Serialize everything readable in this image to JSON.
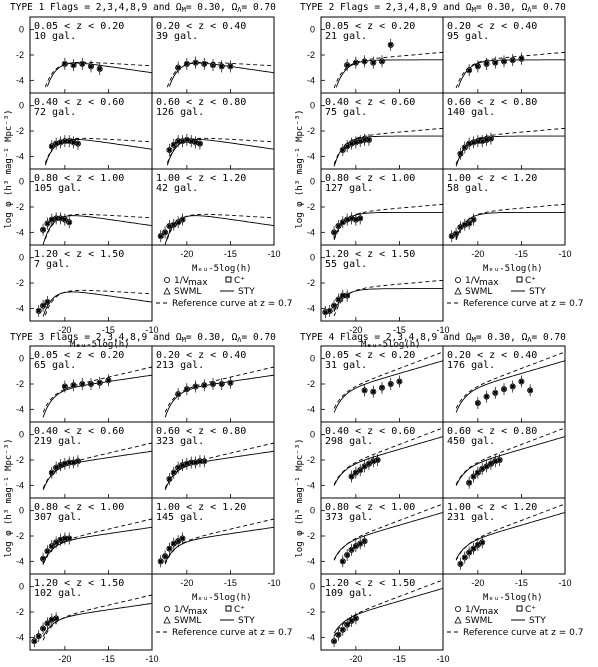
{
  "figure": {
    "legend": {
      "vmax": "1/V",
      "vmax_sub": "max",
      "cplus": "C⁺",
      "swml": "SWML",
      "sty": "STY",
      "ref": "Reference curve at z = 0.7"
    },
    "xlabels": [
      "M",
      "-5log(h)"
    ],
    "ylabel_units": "Mpc",
    "ylabel": "log φ"
  },
  "chart_data": [
    {
      "type": "line",
      "title": "TYPE 1   Flags = 2,3,4,8,9 and  ΩM= 0.30, ΩΛ= 0.70",
      "title_plain": "TYPE 1",
      "flags": "Flags = 2,3,4,8,9 and",
      "omega_m": "0.30",
      "omega_l": "0.70",
      "xlabel": "M  -5log(h)",
      "ylabel": "log φ (h³ mag⁻¹ Mpc⁻³)",
      "xlim": [
        -24,
        -10
      ],
      "ylim": [
        -5,
        1
      ],
      "xticks": [
        -20,
        -15,
        -10
      ],
      "yticks": [
        0,
        -2,
        -4
      ],
      "panels": [
        {
          "range": "0.05 < z < 0.20",
          "n": "10 gal.",
          "pts": [
            [
              -20,
              -2.7
            ],
            [
              -19,
              -2.8
            ],
            [
              -18,
              -2.7
            ],
            [
              -17,
              -2.9
            ],
            [
              -16,
              -3.1
            ]
          ]
        },
        {
          "range": "0.20 < z < 0.40",
          "n": "39 gal.",
          "pts": [
            [
              -21,
              -3.0
            ],
            [
              -20,
              -2.7
            ],
            [
              -19,
              -2.6
            ],
            [
              -18,
              -2.7
            ],
            [
              -17,
              -2.8
            ],
            [
              -16,
              -2.9
            ],
            [
              -15,
              -2.9
            ]
          ]
        },
        {
          "range": "0.40 < z < 0.60",
          "n": "72 gal.",
          "pts": [
            [
              -21.5,
              -3.2
            ],
            [
              -21,
              -3.0
            ],
            [
              -20.5,
              -2.9
            ],
            [
              -20,
              -2.8
            ],
            [
              -19.5,
              -2.8
            ],
            [
              -19,
              -2.9
            ],
            [
              -18.5,
              -3.0
            ]
          ]
        },
        {
          "range": "0.60 < z < 0.80",
          "n": "126 gal.",
          "pts": [
            [
              -22,
              -3.5
            ],
            [
              -21.5,
              -3.1
            ],
            [
              -21,
              -2.8
            ],
            [
              -20.5,
              -2.8
            ],
            [
              -20,
              -2.7
            ],
            [
              -19.5,
              -2.8
            ],
            [
              -19,
              -2.9
            ],
            [
              -18.5,
              -3.0
            ]
          ]
        },
        {
          "range": "0.80 < z < 1.00",
          "n": "105 gal.",
          "pts": [
            [
              -22.5,
              -3.8
            ],
            [
              -22,
              -3.3
            ],
            [
              -21.5,
              -3.0
            ],
            [
              -21,
              -2.9
            ],
            [
              -20.5,
              -2.9
            ],
            [
              -20,
              -3.0
            ],
            [
              -19.5,
              -3.2
            ]
          ]
        },
        {
          "range": "1.00 < z < 1.20",
          "n": "42 gal.",
          "pts": [
            [
              -23,
              -4.3
            ],
            [
              -22.5,
              -4.0
            ],
            [
              -22,
              -3.5
            ],
            [
              -21.5,
              -3.4
            ],
            [
              -21,
              -3.2
            ],
            [
              -20.5,
              -3.0
            ]
          ]
        },
        {
          "range": "1.20 < z < 1.50",
          "n": "7 gal.",
          "pts": [
            [
              -23,
              -4.2
            ],
            [
              -22.5,
              -3.8
            ],
            [
              -22,
              -3.5
            ]
          ]
        }
      ]
    },
    {
      "type": "line",
      "title": "TYPE 2",
      "title_plain": "TYPE 2",
      "flags": "Flags = 2,3,4,8,9 and",
      "omega_m": "0.30",
      "omega_l": "0.70",
      "xlim": [
        -24,
        -10
      ],
      "ylim": [
        -5,
        1
      ],
      "xticks": [
        -20,
        -15,
        -10
      ],
      "yticks": [
        0,
        -2,
        -4
      ],
      "panels": [
        {
          "range": "0.05 < z < 0.20",
          "n": "21 gal.",
          "pts": [
            [
              -21,
              -2.8
            ],
            [
              -20,
              -2.6
            ],
            [
              -19,
              -2.5
            ],
            [
              -18,
              -2.6
            ],
            [
              -17,
              -2.5
            ],
            [
              -16,
              -1.2
            ]
          ]
        },
        {
          "range": "0.20 < z < 0.40",
          "n": "95 gal.",
          "pts": [
            [
              -21,
              -3.2
            ],
            [
              -20,
              -2.9
            ],
            [
              -19,
              -2.7
            ],
            [
              -18,
              -2.6
            ],
            [
              -17,
              -2.5
            ],
            [
              -16,
              -2.4
            ],
            [
              -15,
              -2.3
            ]
          ]
        },
        {
          "range": "0.40 < z < 0.60",
          "n": "75 gal.",
          "pts": [
            [
              -21.5,
              -3.5
            ],
            [
              -21,
              -3.2
            ],
            [
              -20.5,
              -3.0
            ],
            [
              -20,
              -2.9
            ],
            [
              -19.5,
              -2.8
            ],
            [
              -19,
              -2.7
            ],
            [
              -18.5,
              -2.7
            ]
          ]
        },
        {
          "range": "0.60 < z < 0.80",
          "n": "140 gal.",
          "pts": [
            [
              -22,
              -3.8
            ],
            [
              -21.5,
              -3.3
            ],
            [
              -21,
              -3.0
            ],
            [
              -20.5,
              -2.9
            ],
            [
              -20,
              -2.8
            ],
            [
              -19.5,
              -2.8
            ],
            [
              -19,
              -2.7
            ],
            [
              -18.5,
              -2.6
            ]
          ]
        },
        {
          "range": "0.80 < z < 1.00",
          "n": "127 gal.",
          "pts": [
            [
              -22.5,
              -4.0
            ],
            [
              -22,
              -3.5
            ],
            [
              -21.5,
              -3.2
            ],
            [
              -21,
              -3.0
            ],
            [
              -20.5,
              -2.9
            ],
            [
              -20,
              -3.0
            ],
            [
              -19.5,
              -2.9
            ]
          ]
        },
        {
          "range": "1.00 < z < 1.20",
          "n": "58 gal.",
          "pts": [
            [
              -23,
              -4.3
            ],
            [
              -22.5,
              -4.1
            ],
            [
              -22,
              -3.6
            ],
            [
              -21.5,
              -3.4
            ],
            [
              -21,
              -3.3
            ],
            [
              -20.5,
              -3.0
            ]
          ]
        },
        {
          "range": "1.20 < z < 1.50",
          "n": "55 gal.",
          "pts": [
            [
              -23.5,
              -4.3
            ],
            [
              -23,
              -4.2
            ],
            [
              -22.5,
              -3.8
            ],
            [
              -22,
              -3.3
            ],
            [
              -21.5,
              -3.0
            ],
            [
              -21,
              -3.0
            ]
          ]
        }
      ]
    },
    {
      "type": "line",
      "title": "TYPE 3",
      "title_plain": "TYPE 3",
      "flags": "Flags = 2,3,4,8,9 and",
      "omega_m": "0.30",
      "omega_l": "0.70",
      "xlim": [
        -24,
        -10
      ],
      "ylim": [
        -5,
        1
      ],
      "xticks": [
        -20,
        -15,
        -10
      ],
      "yticks": [
        0,
        -2,
        -4
      ],
      "panels": [
        {
          "range": "0.05 < z < 0.20",
          "n": "65 gal.",
          "pts": [
            [
              -20,
              -2.2
            ],
            [
              -19,
              -2.1
            ],
            [
              -18,
              -2.0
            ],
            [
              -17,
              -2.0
            ],
            [
              -16,
              -1.9
            ],
            [
              -15,
              -1.7
            ]
          ]
        },
        {
          "range": "0.20 < z < 0.40",
          "n": "213 gal.",
          "pts": [
            [
              -21,
              -2.8
            ],
            [
              -20,
              -2.4
            ],
            [
              -19,
              -2.2
            ],
            [
              -18,
              -2.1
            ],
            [
              -17,
              -2.0
            ],
            [
              -16,
              -2.0
            ],
            [
              -15,
              -1.9
            ]
          ]
        },
        {
          "range": "0.40 < z < 0.60",
          "n": "219 gal.",
          "pts": [
            [
              -21.5,
              -3.0
            ],
            [
              -21,
              -2.6
            ],
            [
              -20.5,
              -2.4
            ],
            [
              -20,
              -2.3
            ],
            [
              -19.5,
              -2.2
            ],
            [
              -19,
              -2.2
            ],
            [
              -18.5,
              -2.1
            ]
          ]
        },
        {
          "range": "0.60 < z < 0.80",
          "n": "323 gal.",
          "pts": [
            [
              -22,
              -3.5
            ],
            [
              -21.5,
              -3.0
            ],
            [
              -21,
              -2.6
            ],
            [
              -20.5,
              -2.4
            ],
            [
              -20,
              -2.3
            ],
            [
              -19.5,
              -2.2
            ],
            [
              -19,
              -2.2
            ],
            [
              -18.5,
              -2.1
            ],
            [
              -18,
              -2.1
            ]
          ]
        },
        {
          "range": "0.80 < z < 1.00",
          "n": "307 gal.",
          "pts": [
            [
              -22.5,
              -3.8
            ],
            [
              -22,
              -3.2
            ],
            [
              -21.5,
              -2.8
            ],
            [
              -21,
              -2.5
            ],
            [
              -20.5,
              -2.3
            ],
            [
              -20,
              -2.2
            ],
            [
              -19.5,
              -2.2
            ]
          ]
        },
        {
          "range": "1.00 < z < 1.20",
          "n": "145 gal.",
          "pts": [
            [
              -23,
              -4.0
            ],
            [
              -22.5,
              -3.6
            ],
            [
              -22,
              -3.0
            ],
            [
              -21.5,
              -2.6
            ],
            [
              -21,
              -2.4
            ],
            [
              -20.5,
              -2.2
            ]
          ]
        },
        {
          "range": "1.20 < z < 1.50",
          "n": "102 gal.",
          "pts": [
            [
              -23.5,
              -4.3
            ],
            [
              -23,
              -3.9
            ],
            [
              -22.5,
              -3.3
            ],
            [
              -22,
              -2.9
            ],
            [
              -21.5,
              -2.6
            ],
            [
              -21,
              -2.5
            ]
          ]
        }
      ]
    },
    {
      "type": "line",
      "title": "TYPE 4",
      "title_plain": "TYPE 4",
      "flags": "Flags = 2,3,4,8,9 and",
      "omega_m": "0.30",
      "omega_l": "0.70",
      "xlim": [
        -24,
        -10
      ],
      "ylim": [
        -5,
        1
      ],
      "xticks": [
        -20,
        -15,
        -10
      ],
      "yticks": [
        0,
        -2,
        -4
      ],
      "panels": [
        {
          "range": "0.05 < z < 0.20",
          "n": "31 gal.",
          "pts": [
            [
              -19,
              -2.5
            ],
            [
              -18,
              -2.6
            ],
            [
              -17,
              -2.3
            ],
            [
              -16,
              -2.0
            ],
            [
              -15,
              -1.8
            ]
          ]
        },
        {
          "range": "0.20 < z < 0.40",
          "n": "176 gal.",
          "pts": [
            [
              -20,
              -3.5
            ],
            [
              -19,
              -3.0
            ],
            [
              -18,
              -2.7
            ],
            [
              -17,
              -2.4
            ],
            [
              -16,
              -2.2
            ],
            [
              -15,
              -1.8
            ],
            [
              -14,
              -2.5
            ]
          ]
        },
        {
          "range": "0.40 < z < 0.60",
          "n": "298 gal.",
          "pts": [
            [
              -20.5,
              -3.3
            ],
            [
              -20,
              -3.0
            ],
            [
              -19.5,
              -2.8
            ],
            [
              -19,
              -2.5
            ],
            [
              -18.5,
              -2.3
            ],
            [
              -18,
              -2.1
            ],
            [
              -17.5,
              -2.0
            ]
          ]
        },
        {
          "range": "0.60 < z < 0.80",
          "n": "450 gal.",
          "pts": [
            [
              -21,
              -3.8
            ],
            [
              -20.5,
              -3.3
            ],
            [
              -20,
              -3.0
            ],
            [
              -19.5,
              -2.7
            ],
            [
              -19,
              -2.5
            ],
            [
              -18.5,
              -2.3
            ],
            [
              -18,
              -2.1
            ],
            [
              -17.5,
              -2.0
            ]
          ]
        },
        {
          "range": "0.80 < z < 1.00",
          "n": "373 gal.",
          "pts": [
            [
              -21.5,
              -4.0
            ],
            [
              -21,
              -3.5
            ],
            [
              -20.5,
              -3.1
            ],
            [
              -20,
              -2.8
            ],
            [
              -19.5,
              -2.6
            ],
            [
              -19,
              -2.4
            ]
          ]
        },
        {
          "range": "1.00 < z < 1.20",
          "n": "231 gal.",
          "pts": [
            [
              -22,
              -4.2
            ],
            [
              -21.5,
              -3.7
            ],
            [
              -21,
              -3.3
            ],
            [
              -20.5,
              -3.0
            ],
            [
              -20,
              -2.7
            ],
            [
              -19.5,
              -2.5
            ]
          ]
        },
        {
          "range": "1.20 < z < 1.50",
          "n": "109 gal.",
          "pts": [
            [
              -22.5,
              -4.3
            ],
            [
              -22,
              -3.8
            ],
            [
              -21.5,
              -3.4
            ],
            [
              -21,
              -3.0
            ],
            [
              -20.5,
              -2.7
            ],
            [
              -20,
              -2.5
            ]
          ]
        }
      ]
    }
  ]
}
